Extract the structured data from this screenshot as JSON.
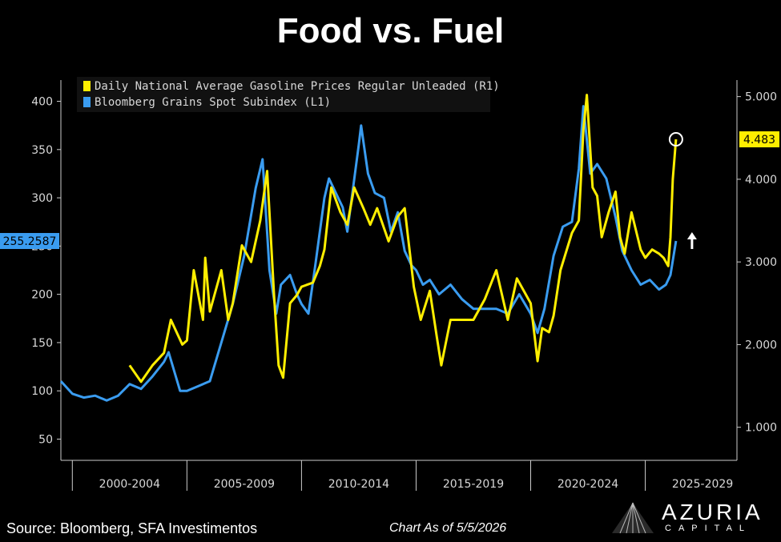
{
  "title": "Food vs. Fuel",
  "source": "Source: Bloomberg, SFA Investimentos",
  "as_of": "Chart As of 5/5/2026",
  "logo": {
    "name": "AZURIA",
    "sub": "CAPITAL",
    "icon": "mountain-logo-icon"
  },
  "colors": {
    "gasoline": "#ffee00",
    "grains": "#3a9cf0",
    "background": "#000000",
    "axis": "#cccccc"
  },
  "chart_data": {
    "type": "line",
    "title": "Food vs. Fuel",
    "x_tick_labels": [
      "2000-2004",
      "2005-2009",
      "2010-2014",
      "2015-2019",
      "2020-2024",
      "2025-2029"
    ],
    "x_range": [
      1999.5,
      2029
    ],
    "left_axis": {
      "ticks": [
        "50",
        "100",
        "150",
        "200",
        "250",
        "300",
        "350",
        "400"
      ],
      "range": [
        28,
        422
      ]
    },
    "right_axis": {
      "ticks": [
        "1.000",
        "2.000",
        "3.000",
        "4.000",
        "5.000"
      ],
      "range": [
        0.6,
        5.2
      ]
    },
    "legend": {
      "placement": "top-left"
    },
    "series": [
      {
        "name": "Daily National Average Gasoline Prices Regular Unleaded  (R1)",
        "axis": "right",
        "last_value_label": "4.483",
        "points": [
          [
            2002.5,
            1.75
          ],
          [
            2003.0,
            1.55
          ],
          [
            2003.5,
            1.75
          ],
          [
            2004.0,
            1.9
          ],
          [
            2004.3,
            2.3
          ],
          [
            2004.8,
            2.0
          ],
          [
            2005.0,
            2.05
          ],
          [
            2005.3,
            2.9
          ],
          [
            2005.7,
            2.3
          ],
          [
            2005.8,
            3.05
          ],
          [
            2006.0,
            2.4
          ],
          [
            2006.5,
            2.9
          ],
          [
            2006.8,
            2.3
          ],
          [
            2007.0,
            2.5
          ],
          [
            2007.4,
            3.2
          ],
          [
            2007.8,
            3.0
          ],
          [
            2008.2,
            3.5
          ],
          [
            2008.5,
            4.1
          ],
          [
            2008.8,
            2.6
          ],
          [
            2009.0,
            1.75
          ],
          [
            2009.2,
            1.6
          ],
          [
            2009.5,
            2.5
          ],
          [
            2009.8,
            2.6
          ],
          [
            2010.0,
            2.7
          ],
          [
            2010.5,
            2.75
          ],
          [
            2010.8,
            2.95
          ],
          [
            2011.0,
            3.15
          ],
          [
            2011.3,
            3.9
          ],
          [
            2011.7,
            3.6
          ],
          [
            2012.0,
            3.45
          ],
          [
            2012.3,
            3.9
          ],
          [
            2012.7,
            3.65
          ],
          [
            2013.0,
            3.45
          ],
          [
            2013.3,
            3.65
          ],
          [
            2013.8,
            3.25
          ],
          [
            2014.2,
            3.55
          ],
          [
            2014.5,
            3.65
          ],
          [
            2014.9,
            2.7
          ],
          [
            2015.2,
            2.3
          ],
          [
            2015.6,
            2.65
          ],
          [
            2015.9,
            2.1
          ],
          [
            2016.1,
            1.75
          ],
          [
            2016.5,
            2.3
          ],
          [
            2017.0,
            2.3
          ],
          [
            2017.5,
            2.3
          ],
          [
            2018.0,
            2.55
          ],
          [
            2018.5,
            2.9
          ],
          [
            2019.0,
            2.3
          ],
          [
            2019.4,
            2.8
          ],
          [
            2019.8,
            2.6
          ],
          [
            2020.0,
            2.5
          ],
          [
            2020.3,
            1.8
          ],
          [
            2020.5,
            2.2
          ],
          [
            2020.8,
            2.15
          ],
          [
            2021.0,
            2.35
          ],
          [
            2021.3,
            2.9
          ],
          [
            2021.8,
            3.35
          ],
          [
            2022.1,
            3.5
          ],
          [
            2022.3,
            4.6
          ],
          [
            2022.45,
            5.02
          ],
          [
            2022.7,
            3.9
          ],
          [
            2022.9,
            3.8
          ],
          [
            2023.1,
            3.3
          ],
          [
            2023.4,
            3.6
          ],
          [
            2023.7,
            3.85
          ],
          [
            2023.9,
            3.3
          ],
          [
            2024.1,
            3.1
          ],
          [
            2024.4,
            3.6
          ],
          [
            2024.8,
            3.15
          ],
          [
            2025.0,
            3.05
          ],
          [
            2025.3,
            3.15
          ],
          [
            2025.6,
            3.1
          ],
          [
            2025.8,
            3.05
          ],
          [
            2026.0,
            2.95
          ],
          [
            2026.1,
            3.3
          ],
          [
            2026.2,
            4.0
          ],
          [
            2026.34,
            4.483
          ]
        ]
      },
      {
        "name": "Bloomberg Grains Spot Subindex  (L1)",
        "axis": "left",
        "last_value_label": "255.2587",
        "points": [
          [
            1999.5,
            110
          ],
          [
            2000.0,
            97
          ],
          [
            2000.5,
            93
          ],
          [
            2001.0,
            95
          ],
          [
            2001.5,
            90
          ],
          [
            2002.0,
            95
          ],
          [
            2002.5,
            107
          ],
          [
            2003.0,
            102
          ],
          [
            2003.5,
            115
          ],
          [
            2004.0,
            130
          ],
          [
            2004.2,
            140
          ],
          [
            2004.7,
            100
          ],
          [
            2005.0,
            100
          ],
          [
            2005.5,
            105
          ],
          [
            2006.0,
            110
          ],
          [
            2006.5,
            150
          ],
          [
            2007.0,
            190
          ],
          [
            2007.5,
            240
          ],
          [
            2008.0,
            310
          ],
          [
            2008.3,
            340
          ],
          [
            2008.6,
            225
          ],
          [
            2008.9,
            180
          ],
          [
            2009.1,
            210
          ],
          [
            2009.5,
            220
          ],
          [
            2009.8,
            200
          ],
          [
            2010.0,
            190
          ],
          [
            2010.3,
            180
          ],
          [
            2010.6,
            230
          ],
          [
            2011.0,
            300
          ],
          [
            2011.2,
            320
          ],
          [
            2011.5,
            305
          ],
          [
            2011.8,
            290
          ],
          [
            2012.0,
            265
          ],
          [
            2012.5,
            355
          ],
          [
            2012.6,
            375
          ],
          [
            2012.9,
            325
          ],
          [
            2013.2,
            305
          ],
          [
            2013.6,
            300
          ],
          [
            2013.9,
            265
          ],
          [
            2014.2,
            285
          ],
          [
            2014.5,
            245
          ],
          [
            2014.8,
            230
          ],
          [
            2015.0,
            225
          ],
          [
            2015.3,
            210
          ],
          [
            2015.6,
            215
          ],
          [
            2016.0,
            200
          ],
          [
            2016.5,
            210
          ],
          [
            2017.0,
            195
          ],
          [
            2017.5,
            185
          ],
          [
            2018.0,
            185
          ],
          [
            2018.5,
            185
          ],
          [
            2019.0,
            180
          ],
          [
            2019.5,
            200
          ],
          [
            2020.0,
            180
          ],
          [
            2020.3,
            160
          ],
          [
            2020.6,
            185
          ],
          [
            2021.0,
            240
          ],
          [
            2021.4,
            270
          ],
          [
            2021.8,
            275
          ],
          [
            2022.1,
            330
          ],
          [
            2022.3,
            395
          ],
          [
            2022.6,
            325
          ],
          [
            2022.9,
            335
          ],
          [
            2023.3,
            320
          ],
          [
            2023.7,
            280
          ],
          [
            2024.0,
            245
          ],
          [
            2024.4,
            225
          ],
          [
            2024.8,
            210
          ],
          [
            2025.2,
            215
          ],
          [
            2025.6,
            205
          ],
          [
            2025.9,
            210
          ],
          [
            2026.1,
            220
          ],
          [
            2026.34,
            255.2587
          ]
        ]
      }
    ],
    "annotations": [
      "circle-marker-on-latest-gasoline-value",
      "up-arrow-next-to-latest-values"
    ]
  }
}
